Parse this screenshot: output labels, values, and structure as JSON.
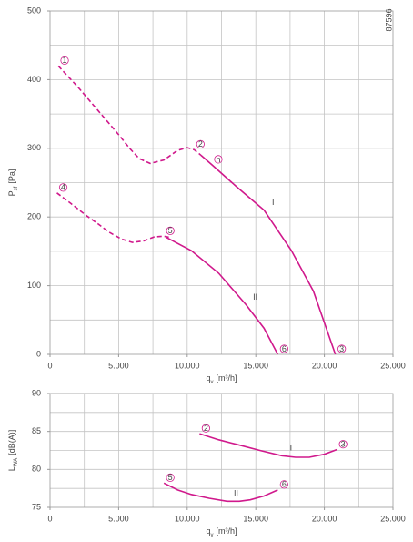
{
  "code": "87596",
  "chart_data": [
    {
      "type": "line",
      "ylabel": {
        "main": "P",
        "sub": "sf",
        "unit": "[Pa]"
      },
      "xlabel": {
        "main": "q",
        "sub": "v",
        "unit": "[m³/h]"
      },
      "xlim": [
        0,
        25000
      ],
      "ylim": [
        0,
        500
      ],
      "xticks": [
        0,
        {
          "value": 5000,
          "label": "5.000"
        },
        {
          "value": 10000,
          "label": "10.000"
        },
        {
          "value": 15000,
          "label": "15.000"
        },
        {
          "value": 20000,
          "label": "20.000"
        },
        {
          "value": 25000,
          "label": "25.000"
        }
      ],
      "yticks": [
        0,
        100,
        200,
        300,
        400,
        500
      ],
      "xgrid": [
        2500,
        5000,
        7500,
        10000,
        12500,
        15000,
        17500,
        20000,
        22500
      ],
      "ygrid": [
        50,
        100,
        150,
        200,
        250,
        300,
        350,
        400,
        450
      ],
      "series": [
        {
          "color": "#d0198c",
          "dashed": true,
          "x": [
            600,
            2000,
            3500,
            5000,
            5800,
            6500,
            7300,
            8300,
            9300,
            10000,
            10500,
            11000
          ],
          "values": [
            420,
            390,
            355,
            320,
            300,
            285,
            278,
            283,
            297,
            301,
            298,
            290
          ]
        },
        {
          "name": "I",
          "color": "#d0198c",
          "dashed": false,
          "x": [
            11000,
            11800,
            13600,
            15600,
            17600,
            19200,
            20800
          ],
          "values": [
            290,
            276,
            244,
            210,
            151,
            92,
            0
          ]
        },
        {
          "color": "#d0198c",
          "dashed": true,
          "x": [
            500,
            1500,
            2650,
            3500,
            4300,
            5200,
            6000,
            6800,
            7600,
            8300,
            8800
          ],
          "values": [
            235,
            220,
            202,
            190,
            178,
            168,
            163,
            165,
            171,
            172,
            170
          ]
        },
        {
          "name": "II",
          "color": "#d0198c",
          "dashed": false,
          "x": [
            8500,
            10300,
            12300,
            14300,
            15600,
            16600
          ],
          "values": [
            170,
            151,
            118,
            72,
            38,
            0
          ]
        }
      ],
      "annotations": [
        {
          "text": "1",
          "series": 0,
          "at": 0
        },
        {
          "text": "2",
          "series": 0,
          "at": 10
        },
        {
          "text": "n",
          "series": 1,
          "at": 1
        },
        {
          "text": "3",
          "series": 1,
          "at": 6
        },
        {
          "text": "4",
          "series": 2,
          "at": 0
        },
        {
          "text": "5",
          "series": 2,
          "at": 9
        },
        {
          "text": "6",
          "series": 3,
          "at": 5
        }
      ]
    },
    {
      "type": "line",
      "ylabel": {
        "main": "L",
        "sub": "WA",
        "unit": "[dB(A)]"
      },
      "xlabel": {
        "main": "q",
        "sub": "v",
        "unit": "[m³/h]"
      },
      "xlim": [
        0,
        25000
      ],
      "ylim": [
        75,
        90
      ],
      "xticks": [
        0,
        {
          "value": 5000,
          "label": "5.000"
        },
        {
          "value": 10000,
          "label": "10.000"
        },
        {
          "value": 15000,
          "label": "15.000"
        },
        {
          "value": 20000,
          "label": "20.000"
        },
        {
          "value": 25000,
          "label": "25.000"
        }
      ],
      "yticks": [
        75,
        80,
        85,
        90
      ],
      "xgrid": [
        2500,
        5000,
        7500,
        10000,
        12500,
        15000,
        17500,
        20000,
        22500
      ],
      "ygrid": [
        77.5,
        80,
        82.5,
        85,
        87.5
      ],
      "series": [
        {
          "name": "I",
          "color": "#d0198c",
          "dashed": false,
          "x": [
            10900,
            12300,
            13600,
            15300,
            16900,
            17900,
            18900,
            20000,
            20900
          ],
          "values": [
            84.7,
            83.9,
            83.3,
            82.5,
            81.8,
            81.6,
            81.6,
            82.0,
            82.6
          ]
        },
        {
          "name": "II",
          "color": "#d0198c",
          "dashed": false,
          "x": [
            8300,
            9300,
            10300,
            11600,
            12900,
            13800,
            14600,
            15600,
            16600
          ],
          "values": [
            78.2,
            77.3,
            76.7,
            76.2,
            75.8,
            75.8,
            76.0,
            76.5,
            77.3
          ]
        }
      ],
      "annotations": [
        {
          "text": "2",
          "series": 0,
          "at": 0
        },
        {
          "text": "3",
          "series": 0,
          "at": 8
        },
        {
          "text": "5",
          "series": 1,
          "at": 0
        },
        {
          "text": "6",
          "series": 1,
          "at": 8
        }
      ]
    }
  ]
}
